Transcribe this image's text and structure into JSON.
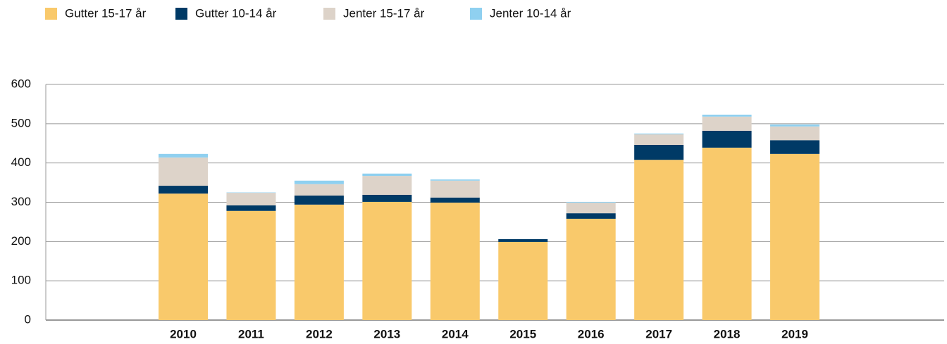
{
  "chart_data": {
    "type": "stacked_bar",
    "categories": [
      "2010",
      "2011",
      "2012",
      "2013",
      "2014",
      "2015",
      "2016",
      "2017",
      "2018",
      "2019"
    ],
    "series": [
      {
        "name": "Gutter 15-17 år",
        "color": "#f9c96b",
        "values": [
          322,
          278,
          294,
          301,
          299,
          199,
          258,
          408,
          439,
          423
        ]
      },
      {
        "name": "Gutter 10-14 år",
        "color": "#003a66",
        "values": [
          20,
          14,
          23,
          18,
          13,
          7,
          14,
          38,
          43,
          35
        ]
      },
      {
        "name": "Jenter 15-17 år",
        "color": "#ddd3c9",
        "values": [
          72,
          32,
          29,
          48,
          43,
          0,
          27,
          27,
          36,
          35
        ]
      },
      {
        "name": "Jenter 10-14 år",
        "color": "#8fd0f0",
        "values": [
          9,
          1,
          9,
          6,
          3,
          0,
          2,
          2,
          5,
          5
        ]
      }
    ],
    "ylim": [
      0,
      600
    ],
    "yticks": [
      0,
      100,
      200,
      300,
      400,
      500,
      600
    ],
    "grid": true,
    "legend": "top-left"
  }
}
